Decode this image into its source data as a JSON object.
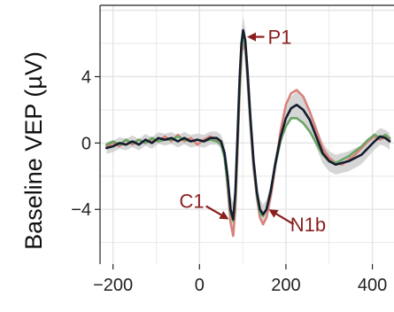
{
  "chart_data": {
    "type": "line",
    "ylabel": "Baseline VEP (µV)",
    "xlim": [
      -230,
      450
    ],
    "ylim": [
      -7.3,
      8.3
    ],
    "x_ticks": [
      -200,
      0,
      200,
      400
    ],
    "x_tick_labels": [
      "−200",
      "0",
      "200",
      "400"
    ],
    "y_ticks": [
      -4,
      0,
      4
    ],
    "y_tick_labels": [
      "−4",
      "0",
      "4"
    ],
    "grid": true,
    "legend": "none",
    "colors": {
      "black": "#141c2e",
      "red": "#d9837a",
      "green": "#6aa566",
      "band": "#c8c8c8",
      "annotation": "#8a1f1f",
      "grid": "#e4e4e4",
      "frame": "#222222"
    },
    "series": [
      {
        "color": "#141c2e",
        "points": [
          [
            -215,
            -0.3
          ],
          [
            -200,
            -0.2
          ],
          [
            -185,
            0.0
          ],
          [
            -170,
            -0.1
          ],
          [
            -155,
            0.1
          ],
          [
            -140,
            -0.1
          ],
          [
            -125,
            0.2
          ],
          [
            -110,
            0.0
          ],
          [
            -95,
            0.3
          ],
          [
            -80,
            0.2
          ],
          [
            -65,
            0.3
          ],
          [
            -50,
            0.1
          ],
          [
            -35,
            0.3
          ],
          [
            -20,
            0.1
          ],
          [
            -5,
            0.2
          ],
          [
            10,
            0.1
          ],
          [
            25,
            0.3
          ],
          [
            40,
            0.3
          ],
          [
            50,
            0.1
          ],
          [
            58,
            -0.6
          ],
          [
            65,
            -2.0
          ],
          [
            72,
            -4.0
          ],
          [
            78,
            -4.6
          ],
          [
            83,
            -3.0
          ],
          [
            88,
            0.5
          ],
          [
            93,
            4.0
          ],
          [
            97,
            6.0
          ],
          [
            101,
            6.8
          ],
          [
            106,
            6.2
          ],
          [
            111,
            4.4
          ],
          [
            118,
            1.5
          ],
          [
            125,
            -1.0
          ],
          [
            133,
            -3.0
          ],
          [
            140,
            -4.0
          ],
          [
            147,
            -4.3
          ],
          [
            155,
            -4.0
          ],
          [
            165,
            -2.9
          ],
          [
            175,
            -1.3
          ],
          [
            188,
            0.4
          ],
          [
            200,
            1.5
          ],
          [
            212,
            2.1
          ],
          [
            225,
            2.3
          ],
          [
            240,
            2.0
          ],
          [
            255,
            1.4
          ],
          [
            270,
            0.4
          ],
          [
            285,
            -0.6
          ],
          [
            300,
            -1.1
          ],
          [
            315,
            -1.3
          ],
          [
            330,
            -1.2
          ],
          [
            345,
            -1.1
          ],
          [
            360,
            -0.9
          ],
          [
            375,
            -0.7
          ],
          [
            390,
            -0.3
          ],
          [
            405,
            0.1
          ],
          [
            418,
            0.4
          ],
          [
            430,
            0.3
          ],
          [
            440,
            0.1
          ]
        ],
        "band": [
          [
            -215,
            0.35
          ],
          [
            -100,
            0.35
          ],
          [
            50,
            0.4
          ],
          [
            72,
            0.8
          ],
          [
            78,
            1.0
          ],
          [
            88,
            0.7
          ],
          [
            101,
            0.8
          ],
          [
            111,
            0.6
          ],
          [
            140,
            0.6
          ],
          [
            147,
            0.6
          ],
          [
            175,
            0.5
          ],
          [
            200,
            0.6
          ],
          [
            225,
            0.8
          ],
          [
            255,
            0.7
          ],
          [
            300,
            0.6
          ],
          [
            360,
            0.6
          ],
          [
            405,
            0.5
          ],
          [
            440,
            0.5
          ]
        ]
      },
      {
        "color": "#d9837a",
        "points": [
          [
            -215,
            -0.2
          ],
          [
            -200,
            0.0
          ],
          [
            -185,
            -0.2
          ],
          [
            -170,
            0.2
          ],
          [
            -155,
            -0.1
          ],
          [
            -140,
            0.2
          ],
          [
            -125,
            0.0
          ],
          [
            -110,
            0.2
          ],
          [
            -95,
            0.1
          ],
          [
            -80,
            0.4
          ],
          [
            -65,
            0.1
          ],
          [
            -50,
            0.5
          ],
          [
            -35,
            0.1
          ],
          [
            -20,
            0.3
          ],
          [
            -5,
            -0.1
          ],
          [
            10,
            0.2
          ],
          [
            25,
            0.4
          ],
          [
            40,
            0.2
          ],
          [
            50,
            0.0
          ],
          [
            58,
            -0.8
          ],
          [
            65,
            -2.6
          ],
          [
            72,
            -4.8
          ],
          [
            78,
            -5.6
          ],
          [
            83,
            -4.0
          ],
          [
            88,
            -0.5
          ],
          [
            93,
            3.0
          ],
          [
            97,
            5.3
          ],
          [
            101,
            6.0
          ],
          [
            106,
            5.6
          ],
          [
            111,
            3.8
          ],
          [
            118,
            1.0
          ],
          [
            125,
            -1.5
          ],
          [
            133,
            -3.3
          ],
          [
            140,
            -4.5
          ],
          [
            147,
            -4.9
          ],
          [
            155,
            -4.5
          ],
          [
            165,
            -3.2
          ],
          [
            175,
            -1.5
          ],
          [
            188,
            0.8
          ],
          [
            200,
            2.3
          ],
          [
            212,
            3.0
          ],
          [
            225,
            3.2
          ],
          [
            240,
            2.8
          ],
          [
            255,
            1.9
          ],
          [
            270,
            0.8
          ],
          [
            285,
            -0.3
          ],
          [
            300,
            -0.9
          ],
          [
            315,
            -1.2
          ],
          [
            330,
            -1.3
          ],
          [
            345,
            -1.0
          ],
          [
            360,
            -0.7
          ],
          [
            375,
            -0.3
          ],
          [
            390,
            0.1
          ],
          [
            405,
            0.4
          ],
          [
            418,
            0.2
          ],
          [
            430,
            0.4
          ],
          [
            440,
            0.2
          ]
        ]
      },
      {
        "color": "#6aa566",
        "points": [
          [
            -215,
            -0.1
          ],
          [
            -200,
            0.1
          ],
          [
            -185,
            -0.1
          ],
          [
            -170,
            0.2
          ],
          [
            -155,
            0.0
          ],
          [
            -140,
            0.2
          ],
          [
            -125,
            0.0
          ],
          [
            -110,
            0.3
          ],
          [
            -95,
            0.1
          ],
          [
            -80,
            0.2
          ],
          [
            -65,
            0.2
          ],
          [
            -50,
            0.4
          ],
          [
            -35,
            0.2
          ],
          [
            -20,
            0.1
          ],
          [
            -5,
            0.2
          ],
          [
            10,
            0.1
          ],
          [
            25,
            0.2
          ],
          [
            40,
            0.1
          ],
          [
            50,
            -0.1
          ],
          [
            58,
            -0.9
          ],
          [
            65,
            -2.4
          ],
          [
            72,
            -4.2
          ],
          [
            78,
            -4.7
          ],
          [
            83,
            -3.4
          ],
          [
            88,
            0.0
          ],
          [
            93,
            3.4
          ],
          [
            97,
            5.6
          ],
          [
            101,
            6.4
          ],
          [
            106,
            6.0
          ],
          [
            111,
            4.1
          ],
          [
            118,
            1.2
          ],
          [
            125,
            -1.2
          ],
          [
            133,
            -3.2
          ],
          [
            140,
            -4.2
          ],
          [
            147,
            -4.4
          ],
          [
            155,
            -4.0
          ],
          [
            165,
            -2.8
          ],
          [
            175,
            -1.4
          ],
          [
            188,
            0.2
          ],
          [
            200,
            1.0
          ],
          [
            212,
            1.5
          ],
          [
            225,
            1.5
          ],
          [
            240,
            1.2
          ],
          [
            255,
            0.7
          ],
          [
            270,
            0.0
          ],
          [
            285,
            -0.7
          ],
          [
            300,
            -1.1
          ],
          [
            315,
            -1.2
          ],
          [
            330,
            -1.0
          ],
          [
            345,
            -0.8
          ],
          [
            360,
            -0.5
          ],
          [
            375,
            -0.2
          ],
          [
            390,
            0.2
          ],
          [
            405,
            0.5
          ],
          [
            418,
            0.3
          ],
          [
            430,
            0.5
          ],
          [
            440,
            0.3
          ]
        ]
      }
    ],
    "annotations": [
      {
        "label": "P1",
        "from": [
          150,
          6.4
        ],
        "to": [
          110,
          6.4
        ]
      },
      {
        "label": "C1",
        "from": [
          15,
          -3.8
        ],
        "to": [
          68,
          -4.6
        ]
      },
      {
        "label": "N1b",
        "from": [
          218,
          -4.9
        ],
        "to": [
          160,
          -4.0
        ]
      }
    ]
  }
}
